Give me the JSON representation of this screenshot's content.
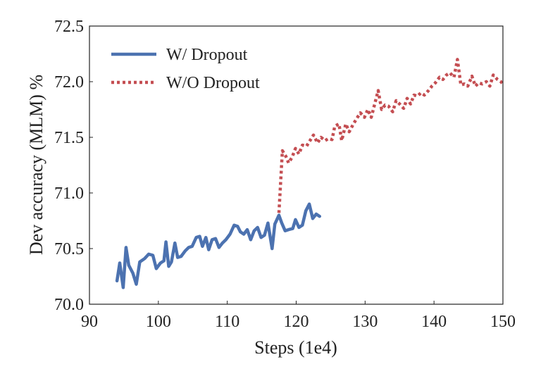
{
  "chart_data": {
    "type": "line",
    "title": "",
    "xlabel": "Steps (1e4)",
    "ylabel": "Dev accuracy (MLM) %",
    "xlim": [
      90,
      150
    ],
    "ylim": [
      70.0,
      72.5
    ],
    "xticks": [
      90,
      100,
      110,
      120,
      130,
      140,
      150
    ],
    "xtick_labels": [
      "90",
      "100",
      "110",
      "120",
      "130",
      "140",
      "150"
    ],
    "yticks": [
      70.0,
      70.5,
      71.0,
      71.5,
      72.0,
      72.5
    ],
    "ytick_labels": [
      "70.0",
      "70.5",
      "71.0",
      "71.5",
      "72.0",
      "72.5"
    ],
    "grid": false,
    "legend_position": "top-left",
    "series": [
      {
        "name": "W/ Dropout",
        "color": "#4c72b0",
        "style": "solid",
        "x": [
          94.0,
          94.4,
          94.9,
          95.3,
          95.7,
          96.3,
          96.8,
          97.3,
          98.0,
          98.6,
          99.2,
          99.7,
          100.3,
          100.8,
          101.1,
          101.5,
          101.9,
          102.4,
          102.8,
          103.3,
          103.9,
          104.4,
          104.9,
          105.5,
          106.0,
          106.4,
          106.9,
          107.3,
          107.8,
          108.3,
          108.8,
          109.3,
          109.8,
          110.4,
          111.0,
          111.5,
          111.9,
          112.4,
          112.9,
          113.4,
          113.9,
          114.4,
          114.9,
          115.4,
          115.9,
          116.5,
          116.9,
          117.5,
          117.9,
          118.4,
          118.9,
          119.5,
          119.9,
          120.4,
          120.9,
          121.4,
          121.9,
          122.4,
          122.9,
          123.4
        ],
        "values": [
          70.21,
          70.37,
          70.15,
          70.51,
          70.35,
          70.28,
          70.18,
          70.38,
          70.41,
          70.45,
          70.44,
          70.32,
          70.37,
          70.39,
          70.56,
          70.34,
          70.38,
          70.55,
          70.42,
          70.43,
          70.48,
          70.51,
          70.52,
          70.6,
          70.61,
          70.52,
          70.6,
          70.49,
          70.58,
          70.59,
          70.51,
          70.55,
          70.58,
          70.63,
          70.71,
          70.7,
          70.65,
          70.63,
          70.67,
          70.58,
          70.66,
          70.69,
          70.6,
          70.62,
          70.73,
          70.5,
          70.72,
          70.8,
          70.73,
          70.66,
          70.67,
          70.68,
          70.76,
          70.69,
          70.71,
          70.84,
          70.9,
          70.77,
          70.81,
          70.79
        ]
      },
      {
        "name": "W/O Dropout",
        "color": "#c44e52",
        "style": "dotted",
        "x": [
          117.5,
          118.0,
          118.5,
          118.9,
          119.4,
          119.9,
          120.4,
          120.9,
          121.5,
          122.0,
          122.5,
          123.1,
          123.6,
          124.2,
          124.7,
          125.2,
          125.6,
          126.2,
          126.6,
          127.2,
          127.7,
          128.3,
          128.8,
          129.3,
          129.9,
          130.4,
          130.9,
          131.4,
          131.9,
          132.4,
          132.9,
          133.4,
          134.0,
          134.5,
          135.0,
          135.6,
          136.1,
          136.6,
          137.1,
          137.6,
          138.1,
          138.6,
          139.2,
          139.7,
          140.2,
          140.8,
          141.3,
          141.8,
          142.3,
          142.9,
          143.4,
          143.9,
          144.4,
          144.9,
          145.5,
          146.0,
          146.5,
          147.0,
          147.6,
          148.1,
          148.6,
          149.2,
          149.7,
          150.0
        ],
        "values": [
          70.82,
          71.38,
          71.33,
          71.27,
          71.32,
          71.4,
          71.35,
          71.43,
          71.42,
          71.47,
          71.52,
          71.45,
          71.5,
          71.47,
          71.49,
          71.48,
          71.6,
          71.62,
          71.47,
          71.62,
          71.55,
          71.62,
          71.67,
          71.72,
          71.68,
          71.75,
          71.68,
          71.8,
          71.92,
          71.75,
          71.79,
          71.78,
          71.73,
          71.83,
          71.8,
          71.76,
          71.85,
          71.8,
          71.88,
          71.87,
          71.9,
          71.88,
          71.92,
          71.96,
          71.99,
          72.04,
          72.02,
          72.06,
          72.08,
          72.04,
          72.2,
          71.97,
          71.98,
          71.96,
          72.05,
          71.96,
          71.99,
          71.98,
          72.0,
          71.96,
          72.06,
          72.02,
          72.0,
          71.98
        ]
      }
    ]
  }
}
